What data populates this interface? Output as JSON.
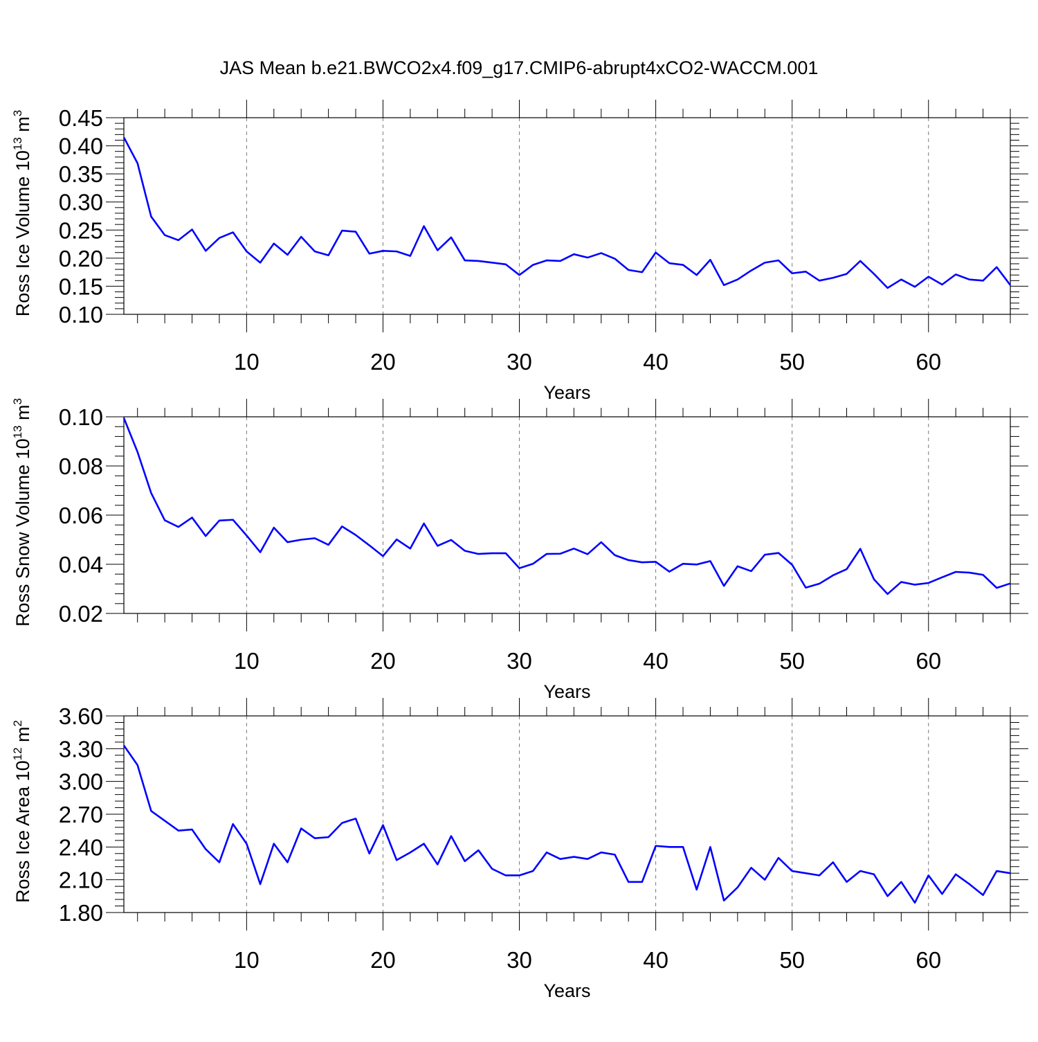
{
  "title": "JAS Mean b.e21.BWCO2x4.f09_g17.CMIP6-abrupt4xCO2-WACCM.001",
  "line_color": "#0000ff",
  "chart_data": [
    {
      "type": "line",
      "ylabel_main": "Ross Ice Volume 10",
      "ylabel_exp": "13",
      "ylabel_unit": " m",
      "ylabel_unit_exp": "3",
      "xlabel": "Years",
      "xlim": [
        1,
        66
      ],
      "ylim": [
        0.1,
        0.45
      ],
      "x_ticks": [
        10,
        20,
        30,
        40,
        50,
        60
      ],
      "y_ticks": [
        "0.10",
        "0.15",
        "0.20",
        "0.25",
        "0.30",
        "0.35",
        "0.40",
        "0.45"
      ],
      "x_gridlines": "dashed-at-major-ticks",
      "values": [
        0.415,
        0.369,
        0.274,
        0.241,
        0.232,
        0.251,
        0.213,
        0.236,
        0.246,
        0.212,
        0.192,
        0.226,
        0.206,
        0.238,
        0.212,
        0.205,
        0.249,
        0.247,
        0.208,
        0.213,
        0.212,
        0.204,
        0.257,
        0.214,
        0.237,
        0.196,
        0.195,
        0.192,
        0.189,
        0.17,
        0.188,
        0.196,
        0.195,
        0.207,
        0.201,
        0.209,
        0.199,
        0.179,
        0.175,
        0.21,
        0.191,
        0.188,
        0.17,
        0.197,
        0.152,
        0.162,
        0.178,
        0.192,
        0.196,
        0.173,
        0.176,
        0.16,
        0.165,
        0.172,
        0.195,
        0.172,
        0.147,
        0.162,
        0.149,
        0.167,
        0.153,
        0.171,
        0.162,
        0.16,
        0.184,
        0.152
      ]
    },
    {
      "type": "line",
      "ylabel_main": "Ross Snow Volume 10",
      "ylabel_exp": "13",
      "ylabel_unit": " m",
      "ylabel_unit_exp": "3",
      "xlabel": "Years",
      "xlim": [
        1,
        66
      ],
      "ylim": [
        0.02,
        0.1
      ],
      "x_ticks": [
        10,
        20,
        30,
        40,
        50,
        60
      ],
      "y_ticks": [
        "0.02",
        "0.04",
        "0.06",
        "0.08",
        "0.10"
      ],
      "x_gridlines": "dashed-at-major-ticks",
      "values": [
        0.0995,
        0.0857,
        0.069,
        0.0579,
        0.0552,
        0.059,
        0.0515,
        0.0578,
        0.0581,
        0.0517,
        0.0449,
        0.0549,
        0.049,
        0.05,
        0.0506,
        0.0479,
        0.0554,
        0.0519,
        0.0477,
        0.0433,
        0.0501,
        0.0464,
        0.0566,
        0.0475,
        0.0499,
        0.0455,
        0.0442,
        0.0445,
        0.0445,
        0.0384,
        0.0402,
        0.0442,
        0.0443,
        0.0464,
        0.0441,
        0.049,
        0.0437,
        0.0417,
        0.0408,
        0.041,
        0.037,
        0.0402,
        0.0399,
        0.0413,
        0.0312,
        0.0392,
        0.0372,
        0.0439,
        0.0446,
        0.0398,
        0.0305,
        0.0321,
        0.0355,
        0.038,
        0.0463,
        0.0339,
        0.0279,
        0.0328,
        0.0317,
        0.0324,
        0.0347,
        0.0369,
        0.0366,
        0.0357,
        0.0304,
        0.0322
      ]
    },
    {
      "type": "line",
      "ylabel_main": "Ross Ice Area 10",
      "ylabel_exp": "12",
      "ylabel_unit": " m",
      "ylabel_unit_exp": "2",
      "xlabel": "Years",
      "xlim": [
        1,
        66
      ],
      "ylim": [
        1.8,
        3.6
      ],
      "x_ticks": [
        10,
        20,
        30,
        40,
        50,
        60
      ],
      "y_ticks": [
        "1.80",
        "2.10",
        "2.40",
        "2.70",
        "3.00",
        "3.30",
        "3.60"
      ],
      "x_gridlines": "dashed-at-major-ticks",
      "values": [
        3.33,
        3.15,
        2.73,
        2.64,
        2.55,
        2.56,
        2.38,
        2.26,
        2.61,
        2.43,
        2.06,
        2.43,
        2.26,
        2.57,
        2.48,
        2.49,
        2.62,
        2.66,
        2.34,
        2.6,
        2.28,
        2.35,
        2.43,
        2.24,
        2.5,
        2.27,
        2.37,
        2.2,
        2.14,
        2.14,
        2.18,
        2.35,
        2.29,
        2.31,
        2.29,
        2.35,
        2.33,
        2.08,
        2.08,
        2.41,
        2.4,
        2.4,
        2.01,
        2.4,
        1.91,
        2.03,
        2.21,
        2.1,
        2.3,
        2.18,
        2.16,
        2.14,
        2.26,
        2.08,
        2.18,
        2.15,
        1.95,
        2.08,
        1.89,
        2.14,
        1.97,
        2.15,
        2.06,
        1.96,
        2.18,
        2.16
      ]
    }
  ]
}
